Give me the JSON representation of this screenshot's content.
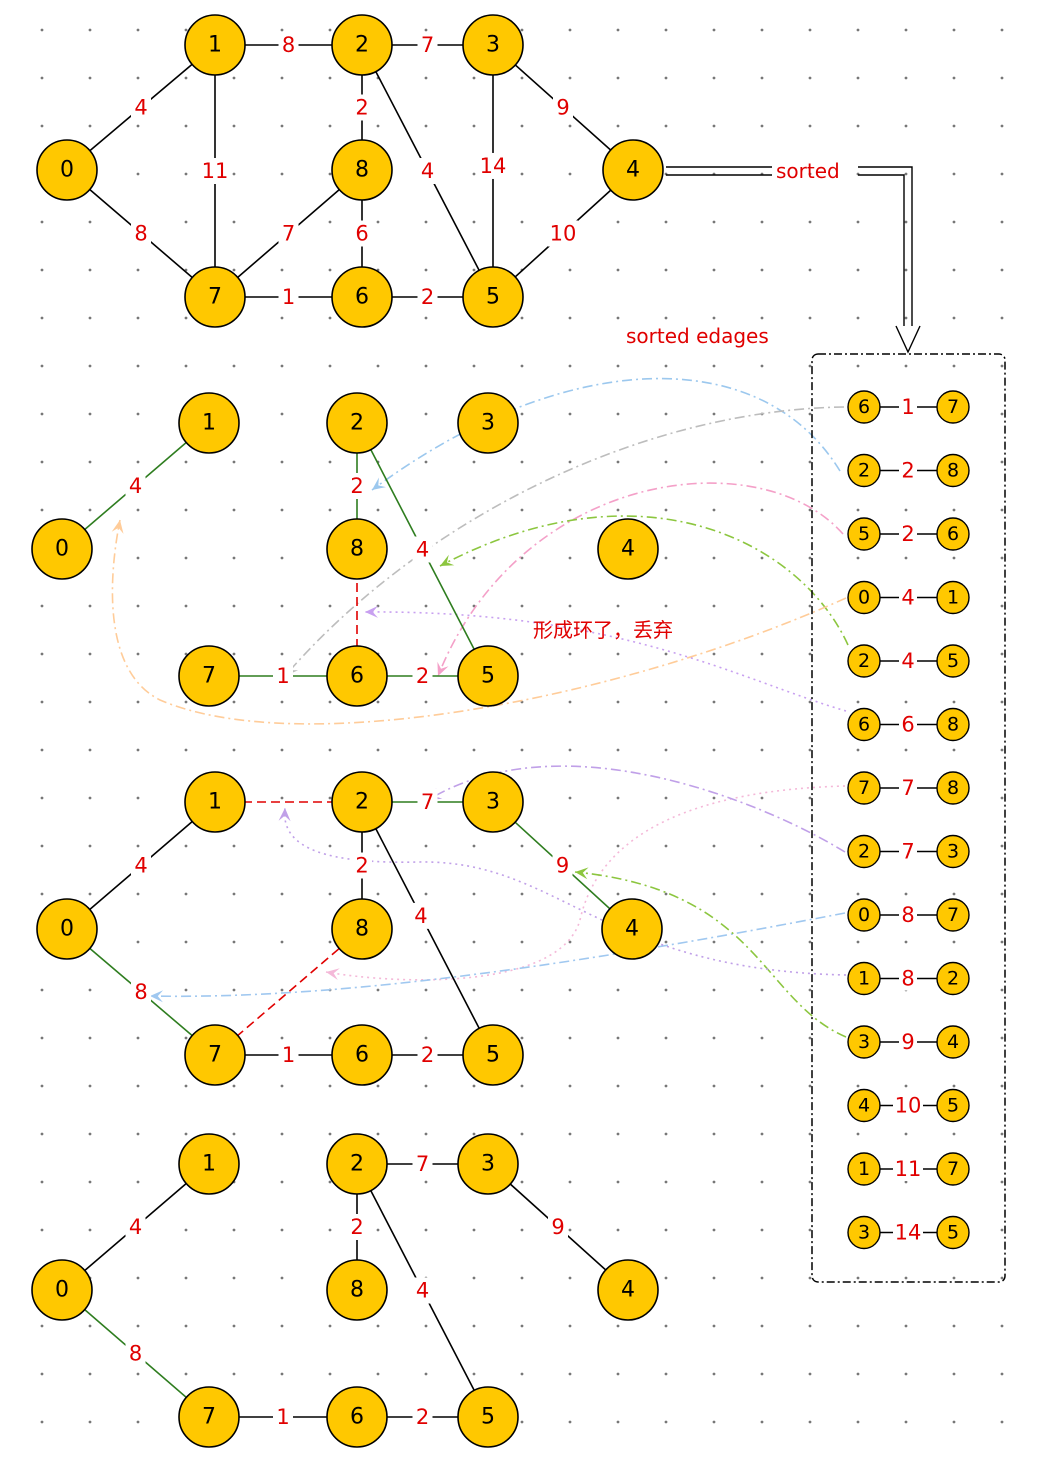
{
  "colors": {
    "node_fill": "#ffc800",
    "node_stroke": "#000000",
    "weight_text": "#e00000",
    "edge_default": "#000000",
    "edge_selected": "#2e7d1f",
    "edge_rejected": "#e00000",
    "arrow_colors": [
      "#9cc8ee",
      "#bdbdbd",
      "#f4a0c8",
      "#8cc63f",
      "#ffcc99",
      "#c8a0f0",
      "#f4b8d8",
      "#a0c8f0",
      "#8cc63f",
      "#c0a0e8"
    ]
  },
  "labels": {
    "sorted": "sorted",
    "sorted_edges": "sorted edages",
    "cycle_note": "形成环了，丢弃"
  },
  "graph": {
    "nodes": [
      "0",
      "1",
      "2",
      "3",
      "4",
      "5",
      "6",
      "7",
      "8"
    ],
    "edges": [
      {
        "u": "0",
        "v": "1",
        "w": "4"
      },
      {
        "u": "0",
        "v": "7",
        "w": "8"
      },
      {
        "u": "1",
        "v": "2",
        "w": "8"
      },
      {
        "u": "1",
        "v": "7",
        "w": "11"
      },
      {
        "u": "2",
        "v": "3",
        "w": "7"
      },
      {
        "u": "2",
        "v": "8",
        "w": "2"
      },
      {
        "u": "2",
        "v": "5",
        "w": "4"
      },
      {
        "u": "3",
        "v": "4",
        "w": "9"
      },
      {
        "u": "3",
        "v": "5",
        "w": "14"
      },
      {
        "u": "4",
        "v": "5",
        "w": "10"
      },
      {
        "u": "5",
        "v": "6",
        "w": "2"
      },
      {
        "u": "6",
        "v": "7",
        "w": "1"
      },
      {
        "u": "6",
        "v": "8",
        "w": "6"
      },
      {
        "u": "7",
        "v": "8",
        "w": "7"
      }
    ]
  },
  "stage2": {
    "nodes": [
      "0",
      "1",
      "2",
      "3",
      "4",
      "5",
      "6",
      "7",
      "8"
    ],
    "edges": [
      {
        "u": "0",
        "v": "1",
        "w": "4",
        "state": "selected"
      },
      {
        "u": "2",
        "v": "8",
        "w": "2",
        "state": "selected"
      },
      {
        "u": "2",
        "v": "5",
        "w": "4",
        "state": "selected"
      },
      {
        "u": "5",
        "v": "6",
        "w": "2",
        "state": "selected"
      },
      {
        "u": "6",
        "v": "7",
        "w": "1",
        "state": "selected"
      },
      {
        "u": "6",
        "v": "8",
        "w": "",
        "state": "rejected"
      }
    ]
  },
  "stage3": {
    "nodes": [
      "0",
      "1",
      "2",
      "3",
      "4",
      "5",
      "6",
      "7",
      "8"
    ],
    "edges": [
      {
        "u": "0",
        "v": "1",
        "w": "4",
        "state": "default"
      },
      {
        "u": "0",
        "v": "7",
        "w": "8",
        "state": "selected"
      },
      {
        "u": "1",
        "v": "2",
        "w": "",
        "state": "rejected"
      },
      {
        "u": "2",
        "v": "3",
        "w": "7",
        "state": "selected"
      },
      {
        "u": "2",
        "v": "8",
        "w": "2",
        "state": "default"
      },
      {
        "u": "2",
        "v": "5",
        "w": "4",
        "state": "default"
      },
      {
        "u": "3",
        "v": "4",
        "w": "9",
        "state": "selected"
      },
      {
        "u": "5",
        "v": "6",
        "w": "2",
        "state": "default"
      },
      {
        "u": "6",
        "v": "7",
        "w": "1",
        "state": "default"
      },
      {
        "u": "7",
        "v": "8",
        "w": "",
        "state": "rejected"
      }
    ]
  },
  "stage4": {
    "nodes": [
      "0",
      "1",
      "2",
      "3",
      "4",
      "5",
      "6",
      "7",
      "8"
    ],
    "edges": [
      {
        "u": "0",
        "v": "1",
        "w": "4",
        "state": "default"
      },
      {
        "u": "0",
        "v": "7",
        "w": "8",
        "state": "selected"
      },
      {
        "u": "2",
        "v": "3",
        "w": "7",
        "state": "default"
      },
      {
        "u": "2",
        "v": "8",
        "w": "2",
        "state": "default"
      },
      {
        "u": "2",
        "v": "5",
        "w": "4",
        "state": "default"
      },
      {
        "u": "3",
        "v": "4",
        "w": "9",
        "state": "default"
      },
      {
        "u": "5",
        "v": "6",
        "w": "2",
        "state": "default"
      },
      {
        "u": "6",
        "v": "7",
        "w": "1",
        "state": "default"
      }
    ]
  },
  "sorted_edges": [
    {
      "u": "6",
      "v": "7",
      "w": "1"
    },
    {
      "u": "2",
      "v": "8",
      "w": "2"
    },
    {
      "u": "5",
      "v": "6",
      "w": "2"
    },
    {
      "u": "0",
      "v": "1",
      "w": "4"
    },
    {
      "u": "2",
      "v": "5",
      "w": "4"
    },
    {
      "u": "6",
      "v": "8",
      "w": "6"
    },
    {
      "u": "7",
      "v": "8",
      "w": "7"
    },
    {
      "u": "2",
      "v": "3",
      "w": "7"
    },
    {
      "u": "0",
      "v": "7",
      "w": "8"
    },
    {
      "u": "1",
      "v": "2",
      "w": "8"
    },
    {
      "u": "3",
      "v": "4",
      "w": "9"
    },
    {
      "u": "4",
      "v": "5",
      "w": "10"
    },
    {
      "u": "1",
      "v": "7",
      "w": "11"
    },
    {
      "u": "3",
      "v": "5",
      "w": "14"
    }
  ]
}
